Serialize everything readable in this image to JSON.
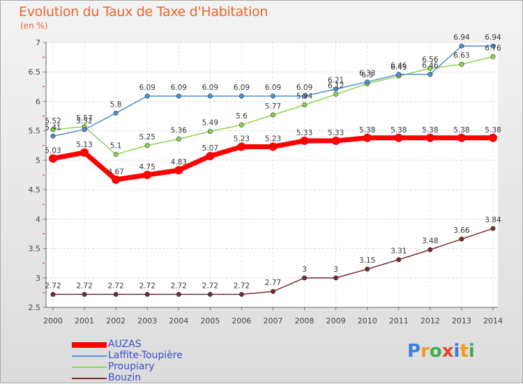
{
  "header": {
    "title": "Evolution du Taux de Taxe d'Habitation",
    "unit": "(en %)"
  },
  "chart_data": {
    "type": "line",
    "title": "Evolution du Taux de Taxe d'Habitation",
    "ylabel": "(en %)",
    "xlabel": "",
    "x": [
      "2000",
      "2001",
      "2002",
      "2003",
      "2004",
      "2005",
      "2006",
      "2007",
      "2008",
      "2009",
      "2010",
      "2011",
      "2012",
      "2013",
      "2014"
    ],
    "ylim": [
      2.5,
      7
    ],
    "yticks": [
      "2.5",
      "3",
      "3.5",
      "4",
      "4.5",
      "5",
      "5.5",
      "6",
      "6.5",
      "7"
    ],
    "grid": true,
    "legend_position": "bottom-left",
    "series": [
      {
        "name": "AUZAS",
        "color": "#ff0000",
        "values": [
          5.03,
          5.13,
          4.67,
          4.75,
          4.83,
          5.07,
          5.23,
          5.23,
          5.33,
          5.33,
          5.38,
          5.38,
          5.38,
          5.38,
          5.38
        ],
        "labels": [
          "5.03",
          "5.13",
          "4.67",
          "4.75",
          "4.83",
          "5.07",
          "5.23",
          "5.23",
          "5.33",
          "5.33",
          "5.38",
          "5.38",
          "5.38",
          "5.38",
          "5.38"
        ]
      },
      {
        "name": "Laffite-Toupière",
        "color": "#4c8fd2",
        "values": [
          5.41,
          5.52,
          5.8,
          6.09,
          6.09,
          6.09,
          6.09,
          6.09,
          6.09,
          6.21,
          6.33,
          6.46,
          6.46,
          6.94,
          6.94
        ],
        "labels": [
          "5.41",
          "5.52",
          "5.8",
          "6.09",
          "6.09",
          "6.09",
          "6.09",
          "6.09",
          "6.09",
          "6.21",
          "6.33",
          "6.46",
          "6.46",
          "6.94",
          "6.94"
        ]
      },
      {
        "name": "Proupiary",
        "color": "#8ad44c",
        "values": [
          5.52,
          5.57,
          5.1,
          5.25,
          5.36,
          5.49,
          5.6,
          5.77,
          5.94,
          6.12,
          6.3,
          6.43,
          6.56,
          6.63,
          6.76
        ],
        "labels": [
          "5.52",
          "5.57",
          "5.1",
          "5.25",
          "5.36",
          "5.49",
          "5.6",
          "5.77",
          "5.94",
          "6.12",
          "6.3",
          "6.43",
          "6.56",
          "6.63",
          "6.76"
        ]
      },
      {
        "name": "Bouzin",
        "color": "#7a2b2b",
        "values": [
          2.72,
          2.72,
          2.72,
          2.72,
          2.72,
          2.72,
          2.72,
          2.77,
          3,
          3,
          3.15,
          3.31,
          3.48,
          3.66,
          3.84
        ],
        "labels": [
          "2.72",
          "2.72",
          "2.72",
          "2.72",
          "2.72",
          "2.72",
          "2.72",
          "2.77",
          "3",
          "3",
          "3.15",
          "3.31",
          "3.48",
          "3.66",
          "3.84"
        ]
      }
    ]
  },
  "legend": {
    "items": [
      {
        "label": "AUZAS"
      },
      {
        "label": "Laffite-Toupière"
      },
      {
        "label": "Proupiary"
      },
      {
        "label": "Bouzin"
      }
    ]
  },
  "logo": {
    "text": "Proxiti",
    "colors": [
      "#3b7fd6",
      "#f29a1d",
      "#3fae49",
      "#e5432b",
      "#3b7fd6",
      "#f29a1d",
      "#3fae49"
    ]
  }
}
